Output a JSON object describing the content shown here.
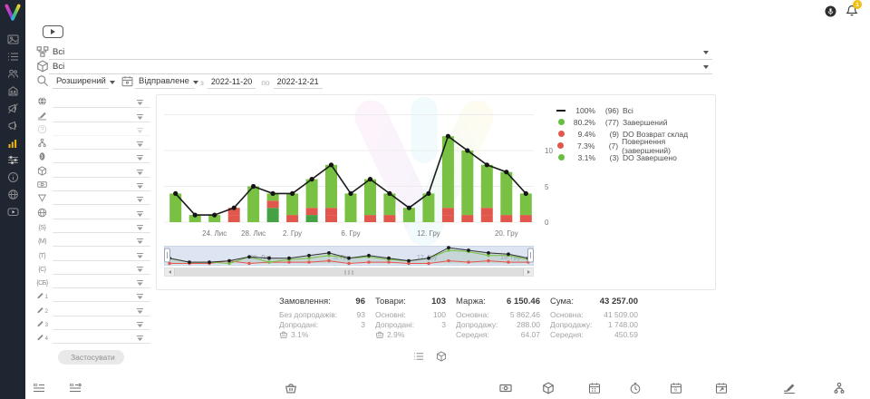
{
  "topbar": {
    "notification_badge": "1"
  },
  "sidebar": {
    "items": [
      {
        "id": "media",
        "icon": "image-icon"
      },
      {
        "id": "orders-list",
        "icon": "list-icon"
      },
      {
        "id": "clients",
        "icon": "users-icon"
      },
      {
        "id": "store",
        "icon": "store-icon"
      },
      {
        "id": "promo-muted",
        "icon": "megaphone-off-icon"
      },
      {
        "id": "promo",
        "icon": "megaphone-icon"
      },
      {
        "id": "analytics",
        "icon": "chart-bars-icon",
        "active": true
      },
      {
        "id": "settings",
        "icon": "sliders-icon"
      },
      {
        "id": "info",
        "icon": "info-circle-icon"
      },
      {
        "id": "integrations",
        "icon": "globe-sync-icon"
      },
      {
        "id": "video-help",
        "icon": "play-rect-icon"
      }
    ]
  },
  "filters": {
    "source_select": {
      "value": "Всі",
      "icon": "flow-icon"
    },
    "product_select": {
      "value": "Всі",
      "icon": "cube-icon"
    },
    "mode_select": "Розширений",
    "date_type_select": "Відправлене",
    "from_label": "з",
    "date_from": "2022-11-20",
    "to_label": "по",
    "date_to": "2022-12-21"
  },
  "filter_panel": {
    "apply_label": "Застосувати",
    "rows": [
      {
        "icon": "globe-solid-icon",
        "value": ""
      },
      {
        "icon": "pen-lines-icon",
        "value": ""
      },
      {
        "icon": "question-circle-icon",
        "value": "",
        "disabled": true
      },
      {
        "icon": "hierarchy-icon",
        "value": ""
      },
      {
        "icon": "badge-oval-icon",
        "value": ""
      },
      {
        "icon": "cube-icon",
        "value": ""
      },
      {
        "icon": "banknote-icon",
        "value": ""
      },
      {
        "icon": "funnel-icon",
        "value": ""
      },
      {
        "icon": "globe-wire-icon",
        "value": ""
      },
      {
        "icon": "brace-icon",
        "letter": "{S}",
        "value": ""
      },
      {
        "icon": "brace-icon",
        "letter": "{M}",
        "value": ""
      },
      {
        "icon": "brace-icon",
        "letter": "{T}",
        "value": ""
      },
      {
        "icon": "brace-icon",
        "letter": "{C}",
        "value": ""
      },
      {
        "icon": "brace-icon",
        "letter": "{СБ}",
        "value": ""
      },
      {
        "icon": "pencil-icon",
        "sub": "1",
        "value": ""
      },
      {
        "icon": "pencil-icon",
        "sub": "2",
        "value": ""
      },
      {
        "icon": "pencil-icon",
        "sub": "3",
        "value": ""
      },
      {
        "icon": "pencil-icon",
        "sub": "4",
        "value": ""
      }
    ]
  },
  "chart_data": {
    "type": "bar",
    "subtype": "stacked bars with total line overlay",
    "n_bars": 19,
    "y_ticks": [
      0,
      5,
      10
    ],
    "ylim": [
      0,
      15
    ],
    "grid": true,
    "x_tick_labels": [
      "24. Лис",
      "28. Лис",
      "2. Гру",
      "6. Гру",
      "12. Гру",
      "20. Гру"
    ],
    "x_tick_bar_index": [
      2,
      4,
      6,
      9,
      13,
      17
    ],
    "series": [
      {
        "name": "Всі",
        "type": "line",
        "color": "#1b1b1b",
        "values": [
          4,
          1,
          1,
          2,
          5,
          4,
          4,
          6,
          8,
          4,
          6,
          4,
          2,
          4,
          12,
          10,
          8,
          7,
          4
        ]
      },
      {
        "name": "Завершений",
        "type": "bar",
        "color": "#79c142",
        "values": [
          4,
          1,
          1,
          0,
          5,
          1,
          3,
          4,
          6,
          4,
          5,
          3,
          2,
          4,
          10,
          9,
          6,
          6,
          3
        ]
      },
      {
        "name": "DO Возврат склад",
        "type": "bar",
        "color": "#e2574c",
        "values": [
          0,
          0,
          0,
          1,
          0,
          1,
          0,
          1,
          1,
          0,
          1,
          0,
          0,
          0,
          1,
          0,
          1,
          1,
          1
        ]
      },
      {
        "name": "Повернення (завершений)",
        "type": "bar",
        "color": "#e2574c",
        "values": [
          0,
          0,
          0,
          1,
          0,
          0,
          1,
          0,
          1,
          0,
          0,
          1,
          0,
          0,
          1,
          1,
          1,
          0,
          0
        ]
      },
      {
        "name": "DO Завершено",
        "type": "bar",
        "color": "#44a244",
        "values": [
          0,
          0,
          0,
          0,
          0,
          2,
          0,
          1,
          0,
          0,
          0,
          0,
          0,
          0,
          0,
          0,
          0,
          0,
          0
        ]
      }
    ],
    "legend": [
      {
        "marker": "line",
        "color": "#1b1b1b",
        "pct": "100%",
        "count": "(96)",
        "label": "Всі"
      },
      {
        "marker": "dot",
        "color": "#66bf3f",
        "pct": "80.2%",
        "count": "(77)",
        "label": "Завершений"
      },
      {
        "marker": "dot",
        "color": "#e2574c",
        "pct": "9.4%",
        "count": "(9)",
        "label": "DO Возврат склад"
      },
      {
        "marker": "dot",
        "color": "#e2574c",
        "pct": "7.3%",
        "count": "(7)",
        "label": "Повернення (завершений)"
      },
      {
        "marker": "dot",
        "color": "#66bf3f",
        "pct": "3.1%",
        "count": "(3)",
        "label": "DO Завершено"
      }
    ],
    "navigator_labels": [
      "28. Лис",
      "5. Гру",
      "12. Гру",
      "19. Гру"
    ],
    "legend_position": "right"
  },
  "stats": {
    "columns": [
      {
        "title": "Замовлення:",
        "value": "96",
        "rows": [
          {
            "label": "Без допродажів:",
            "value": "93"
          },
          {
            "label": "Допродані:",
            "value": "3"
          },
          {
            "icon": "basket-icon",
            "label": "",
            "value": "3.1%",
            "align": "left"
          }
        ]
      },
      {
        "title": "Товари:",
        "value": "103",
        "rows": [
          {
            "label": "Основні:",
            "value": "100"
          },
          {
            "label": "Допродані:",
            "value": "3"
          },
          {
            "icon": "basket-icon",
            "label": "",
            "value": "2.9%",
            "align": "left"
          }
        ]
      },
      {
        "title": "Маржа:",
        "value": "6 150.46",
        "rows": [
          {
            "label": "Основна:",
            "value": "5 862.46"
          },
          {
            "label": "Допродажу:",
            "value": "288.00"
          },
          {
            "label": "Середня:",
            "value": "64.07"
          }
        ]
      },
      {
        "title": "Сума:",
        "value": "43 257.00",
        "rows": [
          {
            "label": "Основна:",
            "value": "41 509.00"
          },
          {
            "label": "Допродажу:",
            "value": "1 748.00"
          },
          {
            "label": "Середня:",
            "value": "450.59"
          }
        ]
      }
    ]
  },
  "view_toggles": [
    {
      "icon": "list-icon"
    },
    {
      "icon": "cube-icon"
    }
  ],
  "toolbar": {
    "icons": [
      "id-list-icon",
      "id-badge-icon",
      "basket-icon",
      "banknote-icon",
      "cube-icon",
      "calendar-grid-icon",
      "timer-icon",
      "calendar-alt-icon",
      "calendar-export-icon",
      "pen-lines-icon",
      "hierarchy-icon"
    ]
  }
}
